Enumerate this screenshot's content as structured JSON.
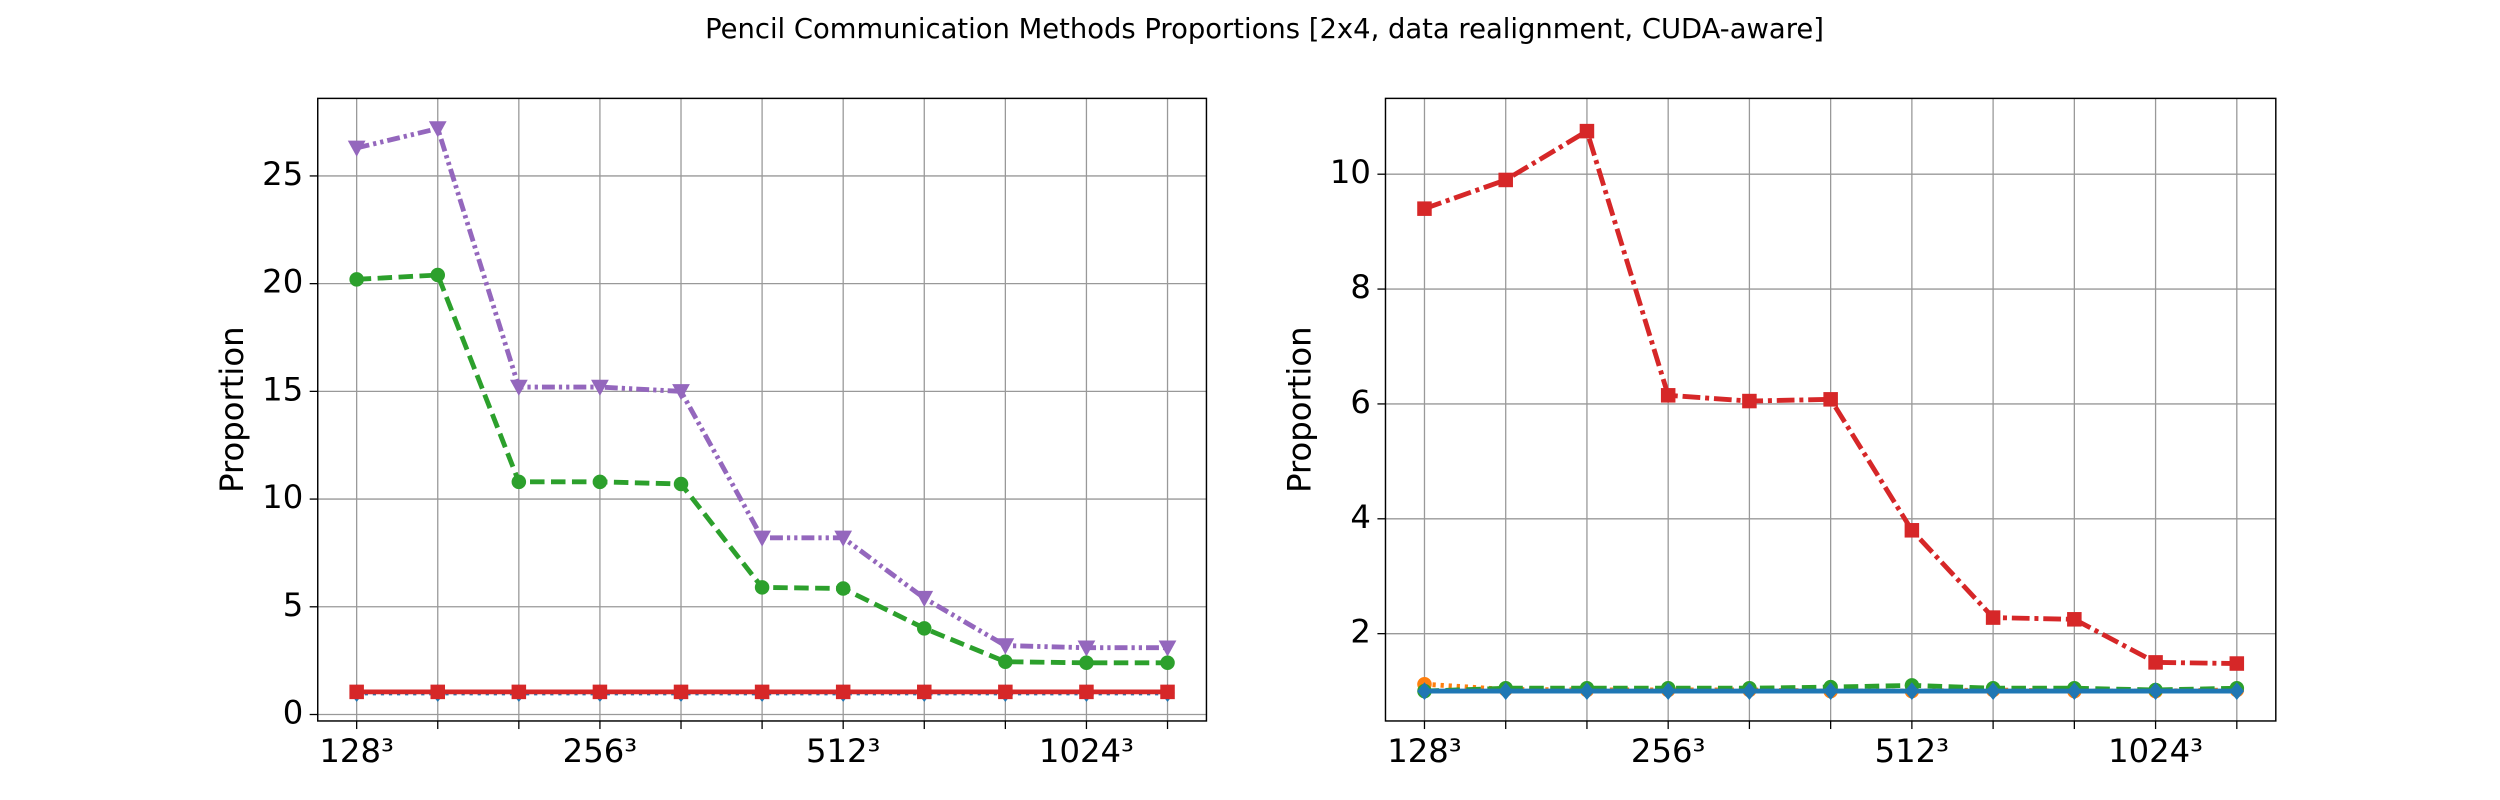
{
  "title": "Pencil Communication Methods Proportions [2x4, data realignment, CUDA-aware]",
  "chart_data": [
    {
      "type": "line",
      "ylabel": "Proportion",
      "grid": true,
      "categories": [
        "128³",
        null,
        null,
        "256³",
        null,
        null,
        "512³",
        null,
        null,
        "1024³",
        null
      ],
      "ylim": [
        -0.3,
        28.6
      ],
      "yticks": [
        0,
        5,
        10,
        15,
        20,
        25
      ],
      "series": [
        {
          "color": "#9467bd",
          "marker": "triangle-down",
          "linestyle": "dashdotdot",
          "values": [
            26.3,
            27.2,
            15.2,
            15.2,
            15.0,
            8.2,
            8.2,
            5.4,
            3.2,
            3.1,
            3.1
          ]
        },
        {
          "color": "#2ca02c",
          "marker": "circle",
          "linestyle": "dashed",
          "values": [
            20.2,
            20.4,
            10.8,
            10.8,
            10.7,
            5.9,
            5.85,
            4.0,
            2.45,
            2.4,
            2.4
          ]
        },
        {
          "color": "#1f77b4",
          "marker": "diamond",
          "linestyle": "dotted",
          "values": [
            1.0,
            1.0,
            1.0,
            1.0,
            1.0,
            1.0,
            1.0,
            1.0,
            1.0,
            1.0,
            1.0
          ]
        },
        {
          "color": "#d62728",
          "marker": "square",
          "linestyle": "solid",
          "values": [
            1.05,
            1.05,
            1.05,
            1.05,
            1.05,
            1.05,
            1.05,
            1.05,
            1.05,
            1.05,
            1.05
          ]
        }
      ]
    },
    {
      "type": "line",
      "ylabel": "Proportion",
      "grid": true,
      "categories": [
        "128³",
        null,
        null,
        "256³",
        null,
        null,
        "512³",
        null,
        null,
        "1024³",
        null
      ],
      "ylim": [
        0.48,
        11.32
      ],
      "yticks": [
        2,
        4,
        6,
        8,
        10
      ],
      "series": [
        {
          "color": "#d62728",
          "marker": "square",
          "linestyle": "dashdot",
          "values": [
            9.4,
            9.9,
            10.75,
            6.15,
            6.05,
            6.08,
            3.8,
            2.28,
            2.25,
            1.5,
            1.48
          ]
        },
        {
          "color": "#ff7f0e",
          "marker": "circle",
          "linestyle": "dotted",
          "values": [
            1.12,
            1.03,
            1.02,
            1.02,
            1.02,
            1.0,
            1.0,
            1.02,
            1.0,
            1.0,
            1.02
          ]
        },
        {
          "color": "#2ca02c",
          "marker": "circle",
          "linestyle": "dashed",
          "values": [
            1.0,
            1.05,
            1.05,
            1.05,
            1.05,
            1.07,
            1.1,
            1.05,
            1.05,
            1.02,
            1.05
          ]
        },
        {
          "color": "#1f77b4",
          "marker": "diamond",
          "linestyle": "solid",
          "values": [
            1.0,
            1.0,
            1.0,
            1.0,
            1.0,
            1.0,
            1.0,
            1.0,
            1.0,
            1.0,
            1.0
          ]
        }
      ]
    }
  ]
}
